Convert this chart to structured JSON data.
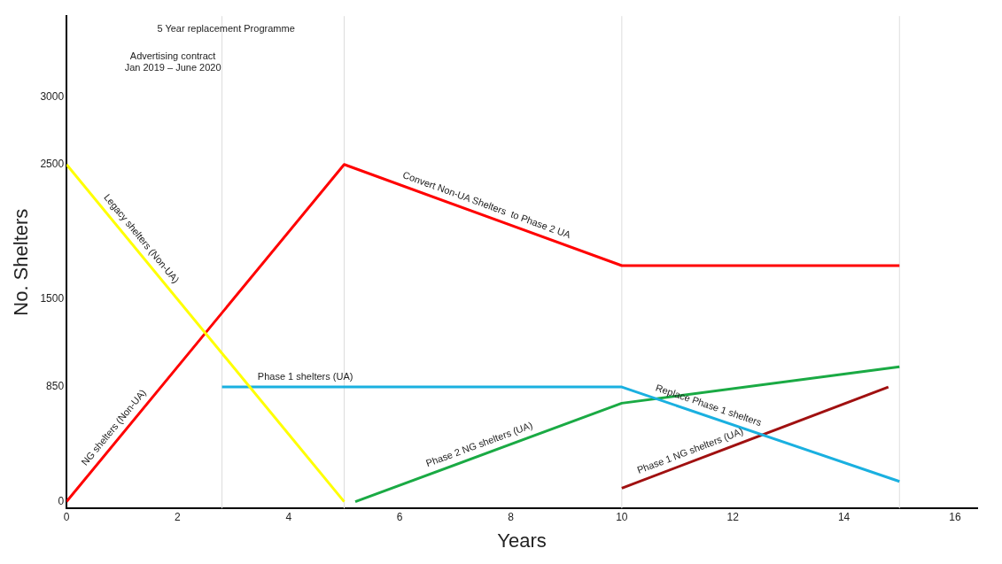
{
  "chart_data": {
    "type": "line",
    "xlabel": "Years",
    "ylabel": "No. Shelters",
    "xlim": [
      0,
      16.4
    ],
    "xticks": [
      0,
      2,
      4,
      6,
      8,
      10,
      12,
      14,
      16
    ],
    "ylim": [
      -50,
      3600
    ],
    "yticks": [
      0,
      850,
      1500,
      2500,
      3000
    ],
    "grid": false,
    "legend": false,
    "marker": "none",
    "line_style": "solid",
    "series": [
      {
        "color": "#ffff00",
        "x": [
          0,
          5
        ],
        "values": [
          2500,
          0
        ]
      },
      {
        "color": "#ff0000",
        "x": [
          0,
          5,
          10,
          15
        ],
        "values": [
          0,
          2500,
          1750,
          1750
        ]
      },
      {
        "color": "#1ab0e0",
        "x": [
          2.8,
          10,
          15
        ],
        "values": [
          850,
          850,
          150
        ]
      },
      {
        "color": "#1aaa44",
        "x": [
          5.2,
          10,
          15
        ],
        "values": [
          0,
          730,
          1000
        ]
      },
      {
        "color": "#a01010",
        "x": [
          10,
          14.8
        ],
        "values": [
          100,
          850
        ]
      }
    ],
    "ref_lines": [
      {
        "axis": "x",
        "value": 2.8,
        "color": "#dddddd"
      },
      {
        "axis": "x",
        "value": 5,
        "color": "#dddddd"
      },
      {
        "axis": "x",
        "value": 10,
        "color": "#dddddd"
      },
      {
        "axis": "x",
        "value": 15,
        "color": "#dddddd"
      }
    ],
    "annotations": [
      {
        "text": "Legacy shelters (Non-UA)",
        "x": 1.2,
        "y": 1900
      },
      {
        "text": "NG shelters (Non-UA)",
        "x": 1.0,
        "y": 500
      },
      {
        "text": "Convert Non-UA Shelters  to Phase 2 UA",
        "x": 7.5,
        "y": 2125
      },
      {
        "text": "Phase 1 shelters (UA)",
        "x": 4.3,
        "y": 850
      },
      {
        "text": "Replace Phase 1 shelters",
        "x": 11.5,
        "y": 640
      },
      {
        "text": "Phase 2 NG shelters (UA)",
        "x": 7.5,
        "y": 350
      },
      {
        "text": "Phase 1 NG shelters (UA)",
        "x": 11.3,
        "y": 303
      },
      "5 Year replacement Programme",
      "Advertising contract\nJan 2019 – June 2020"
    ]
  }
}
